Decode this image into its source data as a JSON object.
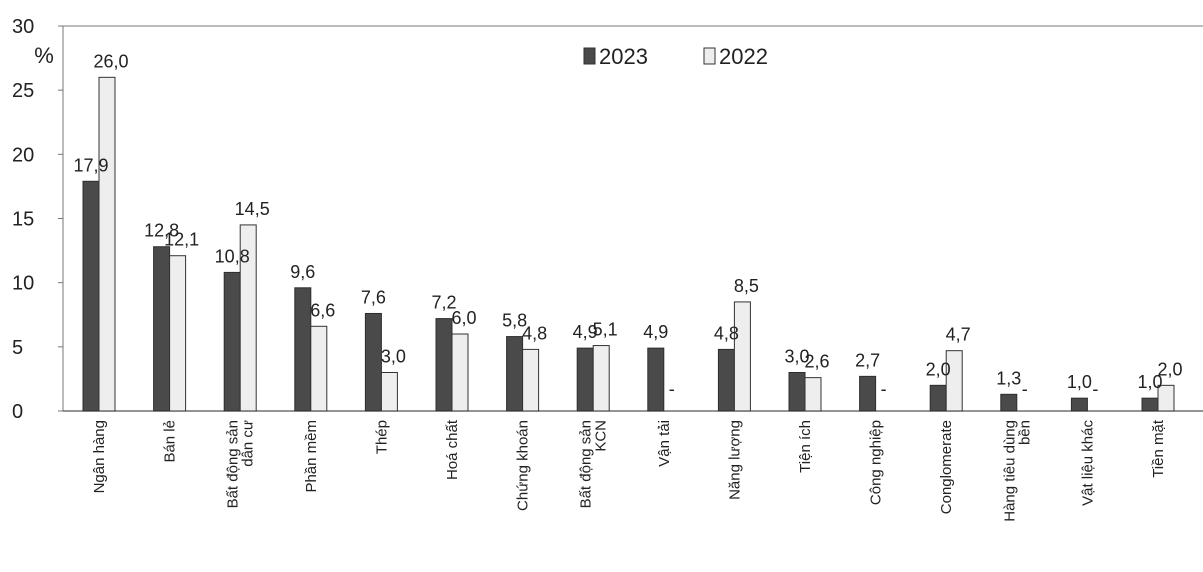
{
  "chart_data": {
    "type": "bar",
    "ylabel": "%",
    "ylim": [
      0,
      30
    ],
    "yticks": [
      0,
      5,
      10,
      15,
      20,
      25,
      30
    ],
    "grid": false,
    "legend_position": "top-center",
    "categories": [
      "Ngân hàng",
      "Bán lẻ",
      "Bất động sản dân cư",
      "Phần mềm",
      "Thép",
      "Hoá chất",
      "Chứng khoán",
      "Bất động sản KCN",
      "Vận tải",
      "Năng lượng",
      "Tiện ích",
      "Công nghiệp",
      "Conglomerate",
      "Hàng tiêu dùng bền",
      "Vật liệu khác",
      "Tiền mặt"
    ],
    "category_lines": [
      [
        "Ngân hàng"
      ],
      [
        "Bán lẻ"
      ],
      [
        "Bất động sản",
        "dân cư"
      ],
      [
        "Phần mềm"
      ],
      [
        "Thép"
      ],
      [
        "Hoá chất"
      ],
      [
        "Chứng khoán"
      ],
      [
        "Bất động sản",
        "KCN"
      ],
      [
        "Vận tải"
      ],
      [
        "Năng lượng"
      ],
      [
        "Tiện ích"
      ],
      [
        "Công nghiệp"
      ],
      [
        "Conglomerate"
      ],
      [
        "Hàng tiêu dùng",
        "bền"
      ],
      [
        "Vật liệu khác"
      ],
      [
        "Tiền mặt"
      ]
    ],
    "series": [
      {
        "name": "2023",
        "color": "#4a4a4a",
        "values": [
          17.9,
          12.8,
          10.8,
          9.6,
          7.6,
          7.2,
          5.8,
          4.9,
          4.9,
          4.8,
          3.0,
          2.7,
          2.0,
          1.3,
          1.0,
          1.0
        ],
        "labels": [
          "17,9",
          "12,8",
          "10,8",
          "9,6",
          "7,6",
          "7,2",
          "5,8",
          "4,9",
          "4,9",
          "4,8",
          "3,0",
          "2,7",
          "2,0",
          "1,3",
          "1,0",
          "1,0"
        ]
      },
      {
        "name": "2022",
        "color": "#eeeeee",
        "values": [
          26.0,
          12.1,
          14.5,
          6.6,
          3.0,
          6.0,
          4.8,
          5.1,
          null,
          8.5,
          2.6,
          null,
          4.7,
          null,
          null,
          2.0
        ],
        "labels": [
          "26,0",
          "12,1",
          "14,5",
          "6,6",
          "3,0",
          "6,0",
          "4,8",
          "5,1",
          "-",
          "8,5",
          "2,6",
          "-",
          "4,7",
          "-",
          "-",
          "2,0"
        ]
      }
    ]
  }
}
